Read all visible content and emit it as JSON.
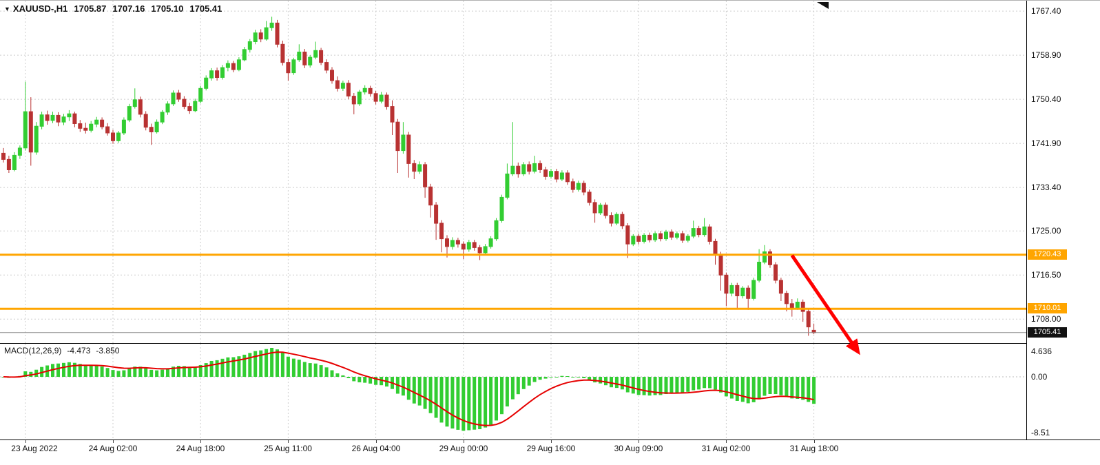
{
  "header": {
    "dropdown_icon": "▼",
    "symbol_timeframe": "XAUUSD-,H1",
    "open": "1705.87",
    "high": "1707.16",
    "low": "1705.10",
    "close": "1705.41"
  },
  "price_axis": {
    "tick_labels": [
      "1767.40",
      "1758.90",
      "1750.40",
      "1741.90",
      "1733.40",
      "1725.00",
      "1716.50",
      "1708.00"
    ],
    "line_labels": [
      {
        "text": "1720.43",
        "bg": "#FFA500",
        "fg": "#FFFFFF"
      },
      {
        "text": "1710.01",
        "bg": "#FFA500",
        "fg": "#FFFFFF"
      }
    ],
    "current_price_label": {
      "text": "1705.41",
      "bg": "#111111",
      "fg": "#FFFFFF"
    }
  },
  "time_axis": {
    "labels": [
      "23 Aug 2022",
      "24 Aug 02:00",
      "24 Aug 18:00",
      "25 Aug 11:00",
      "26 Aug 04:00",
      "29 Aug 00:00",
      "29 Aug 16:00",
      "30 Aug 09:00",
      "31 Aug 02:00",
      "31 Aug 18:00"
    ],
    "tick_indices": [
      4,
      20,
      36,
      52,
      68,
      84,
      100,
      116,
      132,
      148
    ]
  },
  "indicator_panel": {
    "label": "MACD(12,26,9)",
    "main_value": "-4.473",
    "signal_value": "-3.850",
    "axis_labels": [
      "4.636",
      "0.00",
      "-8.51"
    ]
  },
  "colors": {
    "bull": "#32CD32",
    "bear": "#B83232",
    "histogram": "#32CD32",
    "signal_line": "#E60000",
    "hline": "#FFA500",
    "grid": "#CDCDCD",
    "zero_line": "#BBBBBB",
    "arrow": "#FF0000",
    "current_price_line": "#888888",
    "background": "#FFFFFF",
    "text": "#000000"
  },
  "chart_data": {
    "type": "candlestick",
    "symbol": "XAUUSD-",
    "timeframe": "H1",
    "title": "XAUUSD-,H1 1705.87 1707.16 1705.10 1705.41",
    "price_range": [
      1703.4,
      1769.4
    ],
    "grid": true,
    "price_axis_ticks": [
      1767.4,
      1758.9,
      1750.4,
      1741.9,
      1733.4,
      1725.0,
      1716.5,
      1708.0
    ],
    "ohlc_format": [
      "open",
      "high",
      "low",
      "close"
    ],
    "candles": [
      [
        1740.0,
        1741.0,
        1738.2,
        1738.8
      ],
      [
        1738.8,
        1739.5,
        1736.2,
        1736.8
      ],
      [
        1736.8,
        1740.2,
        1736.5,
        1739.6
      ],
      [
        1739.6,
        1741.5,
        1738.9,
        1741.0
      ],
      [
        1741.0,
        1753.8,
        1740.5,
        1748.0
      ],
      [
        1748.0,
        1750.8,
        1737.6,
        1740.2
      ],
      [
        1740.2,
        1746.0,
        1739.7,
        1745.2
      ],
      [
        1745.2,
        1748.0,
        1744.6,
        1747.4
      ],
      [
        1747.4,
        1748.2,
        1745.5,
        1746.3
      ],
      [
        1746.3,
        1748.0,
        1745.8,
        1747.3
      ],
      [
        1747.3,
        1747.9,
        1745.2,
        1746.0
      ],
      [
        1746.0,
        1747.6,
        1745.4,
        1747.0
      ],
      [
        1747.0,
        1748.3,
        1746.2,
        1747.6
      ],
      [
        1747.6,
        1748.0,
        1745.0,
        1745.7
      ],
      [
        1745.7,
        1746.4,
        1744.1,
        1744.8
      ],
      [
        1744.8,
        1745.9,
        1743.8,
        1744.4
      ],
      [
        1744.4,
        1746.2,
        1744.0,
        1745.6
      ],
      [
        1745.6,
        1747.0,
        1745.0,
        1746.4
      ],
      [
        1746.4,
        1746.9,
        1744.6,
        1745.1
      ],
      [
        1745.1,
        1745.8,
        1743.4,
        1743.9
      ],
      [
        1743.9,
        1744.5,
        1741.8,
        1742.4
      ],
      [
        1742.4,
        1744.3,
        1742.0,
        1743.9
      ],
      [
        1743.9,
        1746.9,
        1743.5,
        1746.4
      ],
      [
        1746.4,
        1749.5,
        1746.0,
        1749.0
      ],
      [
        1749.0,
        1752.5,
        1748.6,
        1750.3
      ],
      [
        1750.3,
        1750.9,
        1746.9,
        1747.5
      ],
      [
        1747.5,
        1748.1,
        1744.4,
        1745.0
      ],
      [
        1745.0,
        1745.7,
        1741.6,
        1744.1
      ],
      [
        1744.1,
        1746.5,
        1743.8,
        1746.0
      ],
      [
        1746.0,
        1748.3,
        1745.6,
        1747.9
      ],
      [
        1747.9,
        1750.0,
        1747.4,
        1749.5
      ],
      [
        1749.5,
        1752.1,
        1749.1,
        1751.6
      ],
      [
        1751.6,
        1752.2,
        1749.9,
        1750.4
      ],
      [
        1750.4,
        1751.0,
        1748.5,
        1749.0
      ],
      [
        1749.0,
        1749.7,
        1747.6,
        1748.2
      ],
      [
        1748.2,
        1750.5,
        1747.9,
        1750.0
      ],
      [
        1750.0,
        1753.0,
        1749.6,
        1752.5
      ],
      [
        1752.5,
        1755.0,
        1752.1,
        1754.5
      ],
      [
        1754.5,
        1756.4,
        1754.0,
        1755.9
      ],
      [
        1755.9,
        1756.5,
        1754.0,
        1754.6
      ],
      [
        1754.6,
        1757.0,
        1754.2,
        1756.5
      ],
      [
        1756.5,
        1757.9,
        1755.8,
        1757.3
      ],
      [
        1757.3,
        1757.8,
        1755.6,
        1756.1
      ],
      [
        1756.1,
        1758.5,
        1755.8,
        1758.0
      ],
      [
        1758.0,
        1760.5,
        1757.7,
        1760.0
      ],
      [
        1760.0,
        1762.0,
        1759.4,
        1761.5
      ],
      [
        1761.5,
        1763.8,
        1761.0,
        1763.2
      ],
      [
        1763.2,
        1763.9,
        1761.4,
        1762.0
      ],
      [
        1762.0,
        1765.5,
        1761.7,
        1764.2
      ],
      [
        1764.2,
        1766.3,
        1763.6,
        1765.1
      ],
      [
        1765.1,
        1765.7,
        1760.4,
        1761.0
      ],
      [
        1761.0,
        1761.7,
        1756.9,
        1757.5
      ],
      [
        1757.5,
        1758.2,
        1754.0,
        1755.5
      ],
      [
        1755.5,
        1758.4,
        1755.1,
        1758.0
      ],
      [
        1758.0,
        1761.0,
        1757.6,
        1759.5
      ],
      [
        1759.5,
        1760.1,
        1756.4,
        1757.0
      ],
      [
        1757.0,
        1758.9,
        1756.5,
        1758.5
      ],
      [
        1758.5,
        1761.5,
        1758.1,
        1759.8
      ],
      [
        1759.8,
        1760.3,
        1757.0,
        1757.5
      ],
      [
        1757.5,
        1758.1,
        1755.4,
        1756.0
      ],
      [
        1756.0,
        1756.6,
        1753.4,
        1754.0
      ],
      [
        1754.0,
        1754.8,
        1751.9,
        1752.5
      ],
      [
        1752.5,
        1754.0,
        1752.0,
        1753.5
      ],
      [
        1753.5,
        1754.1,
        1750.4,
        1751.0
      ],
      [
        1751.0,
        1751.6,
        1747.5,
        1749.5
      ],
      [
        1749.5,
        1752.2,
        1749.1,
        1751.8
      ],
      [
        1751.8,
        1753.1,
        1751.3,
        1752.5
      ],
      [
        1752.5,
        1753.0,
        1750.9,
        1751.5
      ],
      [
        1751.5,
        1752.0,
        1749.4,
        1750.0
      ],
      [
        1750.0,
        1751.8,
        1749.6,
        1751.2
      ],
      [
        1751.2,
        1751.7,
        1748.4,
        1749.0
      ],
      [
        1749.0,
        1750.2,
        1743.5,
        1746.0
      ],
      [
        1746.0,
        1746.6,
        1736.2,
        1740.5
      ],
      [
        1740.5,
        1746.0,
        1739.9,
        1743.5
      ],
      [
        1743.5,
        1744.1,
        1735.3,
        1738.0
      ],
      [
        1738.0,
        1738.7,
        1735.0,
        1736.5
      ],
      [
        1736.5,
        1738.4,
        1736.0,
        1737.8
      ],
      [
        1737.8,
        1738.3,
        1731.4,
        1733.5
      ],
      [
        1733.5,
        1734.1,
        1727.6,
        1730.0
      ],
      [
        1730.0,
        1730.6,
        1723.3,
        1726.5
      ],
      [
        1726.5,
        1727.1,
        1720.9,
        1723.5
      ],
      [
        1723.5,
        1724.2,
        1719.9,
        1722.0
      ],
      [
        1722.0,
        1723.8,
        1721.4,
        1723.2
      ],
      [
        1723.2,
        1723.7,
        1721.8,
        1722.5
      ],
      [
        1722.5,
        1723.0,
        1719.6,
        1721.5
      ],
      [
        1721.5,
        1723.3,
        1721.0,
        1722.8
      ],
      [
        1722.8,
        1723.3,
        1721.2,
        1721.8
      ],
      [
        1721.8,
        1722.3,
        1719.4,
        1720.8
      ],
      [
        1720.8,
        1722.5,
        1720.3,
        1722.0
      ],
      [
        1722.0,
        1724.0,
        1721.6,
        1723.5
      ],
      [
        1723.5,
        1727.5,
        1723.1,
        1727.0
      ],
      [
        1727.0,
        1732.0,
        1726.6,
        1731.5
      ],
      [
        1731.5,
        1738.0,
        1731.1,
        1736.0
      ],
      [
        1736.0,
        1746.0,
        1735.6,
        1737.5
      ],
      [
        1737.5,
        1738.2,
        1735.3,
        1736.0
      ],
      [
        1736.0,
        1738.3,
        1735.6,
        1737.8
      ],
      [
        1737.8,
        1738.4,
        1735.9,
        1736.5
      ],
      [
        1736.5,
        1739.5,
        1736.1,
        1738.0
      ],
      [
        1738.0,
        1738.6,
        1736.2,
        1736.8
      ],
      [
        1736.8,
        1737.4,
        1734.9,
        1735.5
      ],
      [
        1735.5,
        1737.0,
        1735.1,
        1736.5
      ],
      [
        1736.5,
        1737.0,
        1734.4,
        1735.0
      ],
      [
        1735.0,
        1736.7,
        1734.6,
        1736.2
      ],
      [
        1736.2,
        1736.7,
        1733.9,
        1734.5
      ],
      [
        1734.5,
        1735.1,
        1732.4,
        1733.0
      ],
      [
        1733.0,
        1734.7,
        1732.6,
        1734.2
      ],
      [
        1734.2,
        1734.7,
        1731.9,
        1732.5
      ],
      [
        1732.5,
        1733.0,
        1729.9,
        1730.5
      ],
      [
        1730.5,
        1731.1,
        1726.6,
        1728.5
      ],
      [
        1728.5,
        1730.4,
        1728.1,
        1730.0
      ],
      [
        1730.0,
        1730.5,
        1727.4,
        1728.0
      ],
      [
        1728.0,
        1728.6,
        1725.9,
        1726.5
      ],
      [
        1726.5,
        1728.6,
        1726.1,
        1728.2
      ],
      [
        1728.2,
        1728.7,
        1725.4,
        1726.0
      ],
      [
        1726.0,
        1726.5,
        1719.8,
        1722.5
      ],
      [
        1722.5,
        1724.4,
        1722.1,
        1724.0
      ],
      [
        1724.0,
        1724.5,
        1722.4,
        1723.0
      ],
      [
        1723.0,
        1724.6,
        1722.6,
        1724.2
      ],
      [
        1724.2,
        1724.7,
        1722.8,
        1723.3
      ],
      [
        1723.3,
        1724.9,
        1722.9,
        1724.5
      ],
      [
        1724.5,
        1725.0,
        1723.0,
        1723.5
      ],
      [
        1723.5,
        1725.2,
        1723.1,
        1724.8
      ],
      [
        1724.8,
        1725.3,
        1723.3,
        1723.8
      ],
      [
        1723.8,
        1724.9,
        1723.4,
        1724.5
      ],
      [
        1724.5,
        1725.0,
        1722.7,
        1723.2
      ],
      [
        1723.2,
        1724.4,
        1722.8,
        1724.0
      ],
      [
        1724.0,
        1727.0,
        1723.6,
        1725.5
      ],
      [
        1725.5,
        1726.0,
        1723.8,
        1724.3
      ],
      [
        1724.3,
        1727.5,
        1723.9,
        1725.8
      ],
      [
        1725.8,
        1726.3,
        1722.4,
        1723.0
      ],
      [
        1723.0,
        1723.5,
        1718.5,
        1720.5
      ],
      [
        1720.5,
        1721.0,
        1713.5,
        1716.5
      ],
      [
        1716.5,
        1717.0,
        1710.5,
        1713.0
      ],
      [
        1713.0,
        1715.0,
        1712.4,
        1714.5
      ],
      [
        1714.5,
        1715.0,
        1710.0,
        1712.5
      ],
      [
        1712.5,
        1714.4,
        1712.0,
        1714.0
      ],
      [
        1714.0,
        1714.5,
        1709.8,
        1712.0
      ],
      [
        1712.0,
        1716.0,
        1711.6,
        1715.5
      ],
      [
        1715.5,
        1721.5,
        1715.1,
        1719.0
      ],
      [
        1719.0,
        1722.3,
        1718.6,
        1721.0
      ],
      [
        1721.0,
        1721.5,
        1717.9,
        1718.5
      ],
      [
        1718.5,
        1719.0,
        1714.9,
        1715.5
      ],
      [
        1715.5,
        1716.0,
        1711.5,
        1713.0
      ],
      [
        1713.0,
        1713.5,
        1709.5,
        1711.0
      ],
      [
        1711.0,
        1711.9,
        1708.5,
        1710.2
      ],
      [
        1710.2,
        1712.0,
        1709.8,
        1711.3
      ],
      [
        1711.3,
        1711.8,
        1707.5,
        1709.5
      ],
      [
        1709.5,
        1710.0,
        1704.8,
        1706.5
      ],
      [
        1705.87,
        1707.16,
        1705.1,
        1705.41
      ]
    ],
    "horizontal_lines": [
      {
        "price": 1720.43
      },
      {
        "price": 1710.01
      }
    ],
    "current_price": 1705.41,
    "indicator": {
      "type": "MACD",
      "fast": 12,
      "slow": 26,
      "signal": 9,
      "current_macd": -4.473,
      "current_signal": -3.85,
      "axis_range": [
        -8.51,
        4.636
      ]
    },
    "annotation_arrow": {
      "from_index": 144,
      "from_price": 1720.3,
      "to_index": 156,
      "to_price": 1701.8
    }
  }
}
